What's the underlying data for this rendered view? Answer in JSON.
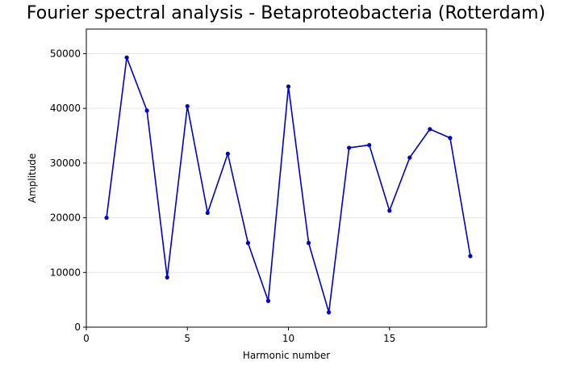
{
  "chart_data": {
    "type": "line",
    "title": "Fourier spectral analysis - Betaproteobacteria (Rotterdam)",
    "xlabel": "Harmonic number",
    "ylabel": "Amplitude",
    "xlim": [
      0,
      19.8
    ],
    "ylim": [
      0,
      54500
    ],
    "x_ticks": [
      0,
      5,
      10,
      15
    ],
    "y_ticks": [
      0,
      10000,
      20000,
      30000,
      40000,
      50000
    ],
    "grid": "y-only, light",
    "legend": "none",
    "series": [
      {
        "color": "#0000c8",
        "marker": "dot",
        "x": [
          1,
          2,
          3,
          4,
          5,
          6,
          7,
          8,
          9,
          10,
          11,
          12,
          13,
          14,
          15,
          16,
          17,
          18,
          19
        ],
        "values": [
          20000,
          49300,
          39600,
          9100,
          40400,
          20900,
          31700,
          15400,
          4800,
          44000,
          15400,
          2700,
          32800,
          33300,
          21300,
          31000,
          36200,
          34600,
          13000
        ]
      }
    ]
  }
}
